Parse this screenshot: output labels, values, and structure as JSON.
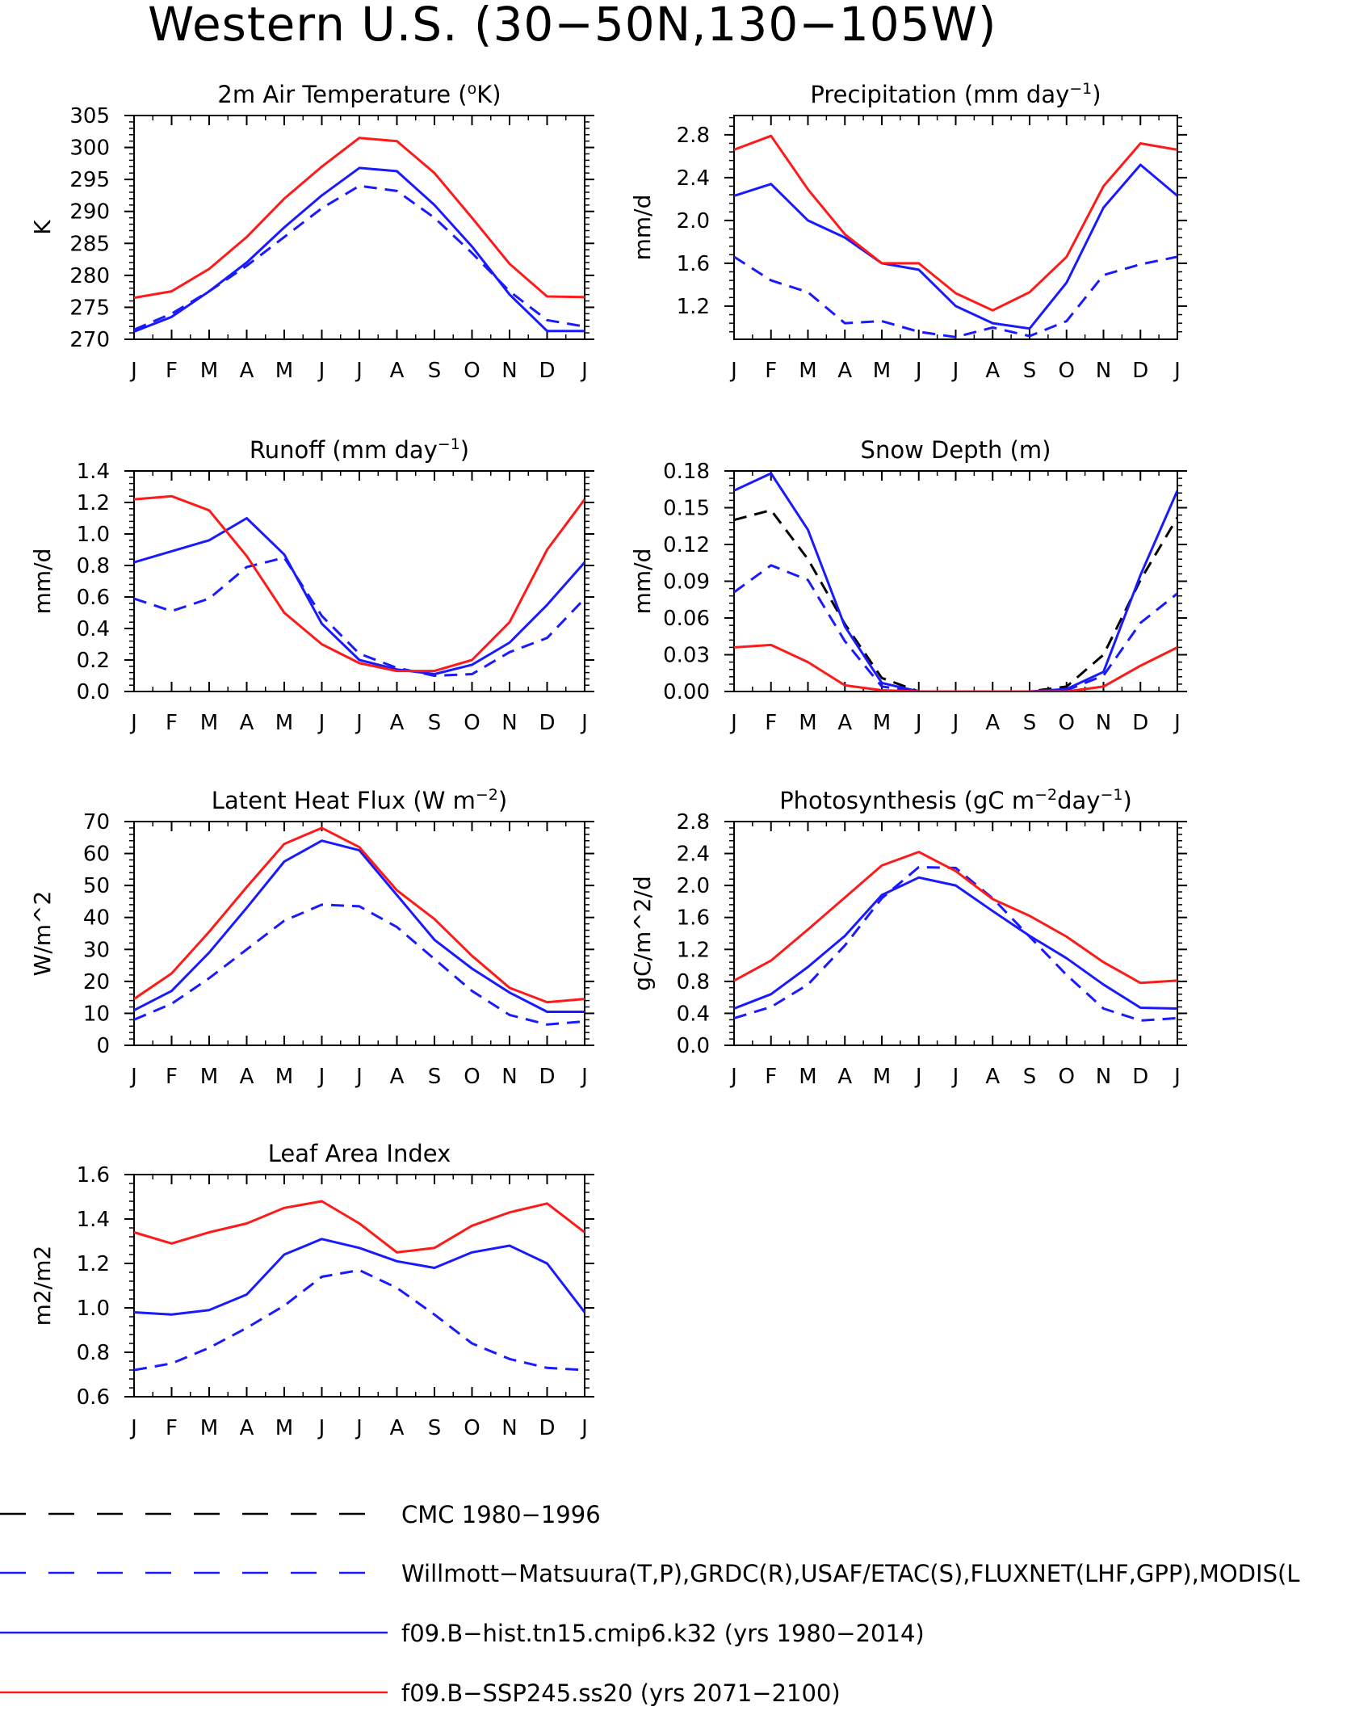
{
  "figure": {
    "title": "Western U.S. (30−50N,130−105W)"
  },
  "colors": {
    "obs_cmc": "#000000",
    "obs": "#1a1aff",
    "hist": "#1a1aff",
    "ssp": "#ff1a1a"
  },
  "legend": [
    {
      "id": "cmc",
      "label": "CMC 1980−1996",
      "color": "#000000",
      "dash": true
    },
    {
      "id": "obs",
      "label": "Willmott−Matsuura(T,P),GRDC(R),USAF/ETAC(S),FLUXNET(LHF,GPP),MODIS(L",
      "color": "#1a1aff",
      "dash": true
    },
    {
      "id": "hist",
      "label": "f09.B−hist.tn15.cmip6.k32 (yrs 1980−2014)",
      "color": "#1a1aff",
      "dash": false
    },
    {
      "id": "ssp",
      "label": "f09.B−SSP245.ss20 (yrs 2071−2100)",
      "color": "#ff1a1a",
      "dash": false
    }
  ],
  "chart_data": [
    {
      "type": "line",
      "title_parts": [
        "2m Air Temperature (",
        "o",
        "K)"
      ],
      "title_parts_kind": [
        "t",
        "sup",
        "t"
      ],
      "ylabel": "K",
      "categories": [
        "J",
        "F",
        "M",
        "A",
        "M",
        "J",
        "J",
        "A",
        "S",
        "O",
        "N",
        "D",
        "J"
      ],
      "ylim": [
        270,
        305
      ],
      "yticks": [
        270,
        275,
        280,
        285,
        290,
        295,
        300,
        305
      ],
      "ytick_labels": [
        "270",
        "275",
        "280",
        "285",
        "290",
        "295",
        "300",
        "305"
      ],
      "series": [
        {
          "id": "obs",
          "values": [
            271.5,
            274,
            277.5,
            281.5,
            286,
            290.5,
            294,
            293.2,
            289,
            283.5,
            277.5,
            273,
            272
          ]
        },
        {
          "id": "hist",
          "values": [
            271.2,
            273.5,
            277.5,
            282,
            287.5,
            292.5,
            296.8,
            296.3,
            291,
            284.5,
            277,
            271.3,
            271.3
          ]
        },
        {
          "id": "ssp",
          "values": [
            276.5,
            277.5,
            281,
            286,
            292,
            297,
            301.5,
            301,
            296,
            289,
            281.8,
            276.7,
            276.6
          ]
        }
      ]
    },
    {
      "type": "line",
      "title_parts": [
        "Precipitation (mm day",
        "−1",
        ")"
      ],
      "title_parts_kind": [
        "t",
        "sup",
        "t"
      ],
      "ylabel": "mm/d",
      "categories": [
        "J",
        "F",
        "M",
        "A",
        "M",
        "J",
        "J",
        "A",
        "S",
        "O",
        "N",
        "D",
        "J"
      ],
      "ylim": [
        0.89,
        2.98
      ],
      "yticks": [
        1.2,
        1.6,
        2.0,
        2.4,
        2.8
      ],
      "ytick_labels": [
        "1.2",
        "1.6",
        "2.0",
        "2.4",
        "2.8"
      ],
      "series": [
        {
          "id": "obs",
          "values": [
            1.66,
            1.44,
            1.33,
            1.04,
            1.06,
            0.96,
            0.91,
            1.0,
            0.92,
            1.06,
            1.49,
            1.59,
            1.66
          ]
        },
        {
          "id": "hist",
          "values": [
            2.23,
            2.34,
            2.0,
            1.84,
            1.6,
            1.54,
            1.2,
            1.04,
            0.99,
            1.42,
            2.12,
            2.52,
            2.23
          ]
        },
        {
          "id": "ssp",
          "values": [
            2.66,
            2.79,
            2.29,
            1.87,
            1.6,
            1.6,
            1.32,
            1.16,
            1.33,
            1.66,
            2.32,
            2.72,
            2.66
          ]
        }
      ]
    },
    {
      "type": "line",
      "title_parts": [
        "Runoff (mm day",
        "−1",
        ")"
      ],
      "title_parts_kind": [
        "t",
        "sup",
        "t"
      ],
      "ylabel": "mm/d",
      "categories": [
        "J",
        "F",
        "M",
        "A",
        "M",
        "J",
        "J",
        "A",
        "S",
        "O",
        "N",
        "D",
        "J"
      ],
      "ylim": [
        0,
        1.4
      ],
      "yticks": [
        0,
        0.2,
        0.4,
        0.6,
        0.8,
        1.0,
        1.2,
        1.4
      ],
      "ytick_labels": [
        "0.0",
        "0.2",
        "0.4",
        "0.6",
        "0.8",
        "1.0",
        "1.2",
        "1.4"
      ],
      "series": [
        {
          "id": "obs",
          "values": [
            0.59,
            0.51,
            0.59,
            0.79,
            0.85,
            0.48,
            0.24,
            0.15,
            0.1,
            0.11,
            0.25,
            0.34,
            0.59
          ]
        },
        {
          "id": "hist",
          "values": [
            0.82,
            0.89,
            0.96,
            1.1,
            0.87,
            0.43,
            0.2,
            0.14,
            0.11,
            0.17,
            0.31,
            0.55,
            0.82
          ]
        },
        {
          "id": "ssp",
          "values": [
            1.22,
            1.24,
            1.15,
            0.86,
            0.5,
            0.3,
            0.18,
            0.13,
            0.13,
            0.2,
            0.44,
            0.9,
            1.22
          ]
        }
      ]
    },
    {
      "type": "line",
      "title_parts": [
        "Snow Depth (m)"
      ],
      "title_parts_kind": [
        "t"
      ],
      "ylabel": "mm/d",
      "categories": [
        "J",
        "F",
        "M",
        "A",
        "M",
        "J",
        "J",
        "A",
        "S",
        "O",
        "N",
        "D",
        "J"
      ],
      "ylim": [
        0,
        0.18
      ],
      "yticks": [
        0,
        0.03,
        0.06,
        0.09,
        0.12,
        0.15,
        0.18
      ],
      "ytick_labels": [
        "0.00",
        "0.03",
        "0.06",
        "0.09",
        "0.12",
        "0.15",
        "0.18"
      ],
      "series": [
        {
          "id": "cmc",
          "values": [
            0.14,
            0.148,
            0.108,
            0.055,
            0.011,
            0.0,
            0.0,
            0.0,
            0.0,
            0.004,
            0.03,
            0.091,
            0.142
          ]
        },
        {
          "id": "obs",
          "values": [
            0.081,
            0.103,
            0.091,
            0.041,
            0.004,
            0.0,
            0.0,
            0.0,
            0.0,
            0.001,
            0.013,
            0.056,
            0.08
          ]
        },
        {
          "id": "hist",
          "values": [
            0.164,
            0.178,
            0.132,
            0.053,
            0.007,
            0.0,
            0.0,
            0.0,
            0.0,
            0.002,
            0.016,
            0.095,
            0.164
          ]
        },
        {
          "id": "ssp",
          "values": [
            0.036,
            0.038,
            0.024,
            0.005,
            0.001,
            0.0,
            0.0,
            0.0,
            0.0,
            0.0,
            0.004,
            0.021,
            0.036
          ]
        }
      ]
    },
    {
      "type": "line",
      "title_parts": [
        "Latent Heat Flux (W m",
        "−2",
        ")"
      ],
      "title_parts_kind": [
        "t",
        "sup",
        "t"
      ],
      "ylabel": "W/m^2",
      "categories": [
        "J",
        "F",
        "M",
        "A",
        "M",
        "J",
        "J",
        "A",
        "S",
        "O",
        "N",
        "D",
        "J"
      ],
      "ylim": [
        0,
        70
      ],
      "yticks": [
        0,
        10,
        20,
        30,
        40,
        50,
        60,
        70
      ],
      "ytick_labels": [
        "0",
        "10",
        "20",
        "30",
        "40",
        "50",
        "60",
        "70"
      ],
      "series": [
        {
          "id": "obs",
          "values": [
            8,
            13,
            21,
            30,
            39,
            44,
            43.5,
            37,
            27,
            17,
            9.5,
            6.5,
            7.5
          ]
        },
        {
          "id": "hist",
          "values": [
            11,
            17,
            29,
            43,
            57.5,
            64,
            61,
            47,
            33,
            24,
            16.5,
            10.5,
            10.5
          ]
        },
        {
          "id": "ssp",
          "values": [
            14.5,
            22.5,
            35.5,
            49.5,
            63,
            68,
            62,
            48.5,
            39.5,
            28,
            18,
            13.5,
            14.5
          ]
        }
      ]
    },
    {
      "type": "line",
      "title_parts": [
        "Photosynthesis (gC m",
        "−2",
        "day",
        "−1",
        ")"
      ],
      "title_parts_kind": [
        "t",
        "sup",
        "t",
        "sup",
        "t"
      ],
      "ylabel": "gC/m^2/d",
      "categories": [
        "J",
        "F",
        "M",
        "A",
        "M",
        "J",
        "J",
        "A",
        "S",
        "O",
        "N",
        "D",
        "J"
      ],
      "ylim": [
        0,
        2.8
      ],
      "yticks": [
        0,
        0.4,
        0.8,
        1.2,
        1.6,
        2.0,
        2.4,
        2.8
      ],
      "ytick_labels": [
        "0.0",
        "0.4",
        "0.8",
        "1.2",
        "1.6",
        "2.0",
        "2.4",
        "2.8"
      ],
      "series": [
        {
          "id": "obs",
          "values": [
            0.34,
            0.48,
            0.76,
            1.25,
            1.84,
            2.23,
            2.22,
            1.84,
            1.36,
            0.88,
            0.46,
            0.31,
            0.34
          ]
        },
        {
          "id": "hist",
          "values": [
            0.46,
            0.64,
            0.98,
            1.37,
            1.88,
            2.1,
            2.0,
            1.68,
            1.37,
            1.09,
            0.76,
            0.47,
            0.46
          ]
        },
        {
          "id": "ssp",
          "values": [
            0.81,
            1.06,
            1.45,
            1.85,
            2.25,
            2.42,
            2.18,
            1.83,
            1.62,
            1.36,
            1.04,
            0.78,
            0.81
          ]
        }
      ]
    },
    {
      "type": "line",
      "title_parts": [
        "Leaf Area Index"
      ],
      "title_parts_kind": [
        "t"
      ],
      "ylabel": "m2/m2",
      "categories": [
        "J",
        "F",
        "M",
        "A",
        "M",
        "J",
        "J",
        "A",
        "S",
        "O",
        "N",
        "D",
        "J"
      ],
      "ylim": [
        0.6,
        1.6
      ],
      "yticks": [
        0.6,
        0.8,
        1.0,
        1.2,
        1.4,
        1.6
      ],
      "ytick_labels": [
        "0.6",
        "0.8",
        "1.0",
        "1.2",
        "1.4",
        "1.6"
      ],
      "series": [
        {
          "id": "obs",
          "values": [
            0.72,
            0.75,
            0.82,
            0.91,
            1.01,
            1.14,
            1.17,
            1.09,
            0.97,
            0.84,
            0.77,
            0.73,
            0.72
          ]
        },
        {
          "id": "hist",
          "values": [
            0.98,
            0.97,
            0.99,
            1.06,
            1.24,
            1.31,
            1.27,
            1.21,
            1.18,
            1.25,
            1.28,
            1.2,
            0.98
          ]
        },
        {
          "id": "ssp",
          "values": [
            1.34,
            1.29,
            1.34,
            1.38,
            1.45,
            1.48,
            1.38,
            1.25,
            1.27,
            1.37,
            1.43,
            1.47,
            1.34
          ]
        }
      ]
    }
  ]
}
